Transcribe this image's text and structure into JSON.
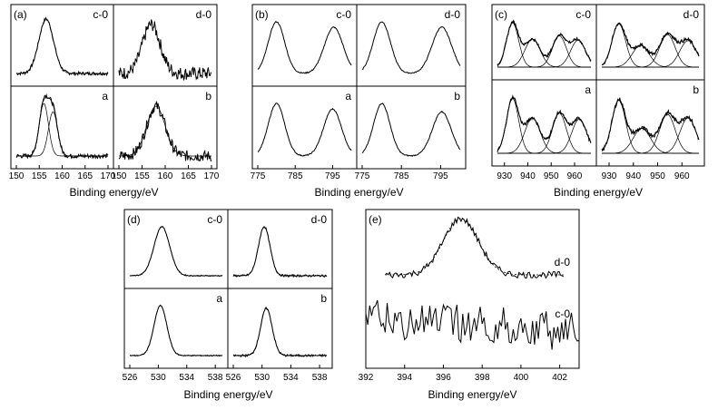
{
  "figure": {
    "description_free": true
  },
  "chart_data": [
    {
      "id": "a",
      "type": "line",
      "panel_label": "(a)",
      "xlabel": "Binding energy/eV",
      "xlim": [
        150,
        170
      ],
      "xticks_left": [
        "150",
        "155",
        "160",
        "165",
        "170"
      ],
      "xticks_right": [
        "150",
        "155",
        "160",
        "165",
        "170"
      ],
      "subpanels": [
        {
          "label": "c-0",
          "peaks": [
            {
              "center": 156.5,
              "width": 1.6,
              "height": 1.0
            }
          ],
          "noise": 0.03,
          "fit": true
        },
        {
          "label": "d-0",
          "peaks": [
            {
              "center": 157.0,
              "width": 1.9,
              "height": 0.9
            }
          ],
          "noise": 0.12,
          "fit": false
        },
        {
          "label": "a",
          "peaks": [
            {
              "center": 156.0,
              "width": 1.0,
              "height": 0.95
            },
            {
              "center": 158.0,
              "width": 1.0,
              "height": 0.8
            }
          ],
          "noise": 0.04,
          "fit": true
        },
        {
          "label": "b",
          "peaks": [
            {
              "center": 158.0,
              "width": 2.0,
              "height": 0.9
            }
          ],
          "noise": 0.1,
          "fit": true
        }
      ]
    },
    {
      "id": "b",
      "type": "line",
      "panel_label": "(b)",
      "xlabel": "Binding energy/eV",
      "xlim": [
        775,
        800
      ],
      "xticks_left": [
        "775",
        "785",
        "795"
      ],
      "xticks_right": [
        "775",
        "785",
        "795"
      ],
      "subpanels": [
        {
          "label": "c-0",
          "peaks": [
            {
              "center": 780.0,
              "width": 2.2,
              "height": 0.95
            },
            {
              "center": 795.3,
              "width": 2.5,
              "height": 0.85
            }
          ],
          "noise": 0.01,
          "fit": false
        },
        {
          "label": "d-0",
          "peaks": [
            {
              "center": 780.0,
              "width": 2.2,
              "height": 0.95
            },
            {
              "center": 795.3,
              "width": 2.5,
              "height": 0.85
            }
          ],
          "noise": 0.01,
          "fit": false
        },
        {
          "label": "a",
          "peaks": [
            {
              "center": 780.0,
              "width": 2.2,
              "height": 0.95
            },
            {
              "center": 795.0,
              "width": 2.4,
              "height": 0.85
            }
          ],
          "noise": 0.01,
          "fit": false
        },
        {
          "label": "b",
          "peaks": [
            {
              "center": 780.0,
              "width": 2.1,
              "height": 0.95
            },
            {
              "center": 795.3,
              "width": 2.4,
              "height": 0.8
            }
          ],
          "noise": 0.01,
          "fit": false
        }
      ]
    },
    {
      "id": "c",
      "type": "line",
      "panel_label": "(c)",
      "xlabel": "Binding energy/eV",
      "xlim": [
        927,
        967
      ],
      "xticks_left": [
        "930",
        "940",
        "950",
        "960"
      ],
      "xticks_right": [
        "930",
        "940",
        "950",
        "960"
      ],
      "subpanels": [
        {
          "label": "c-0",
          "peaks": [
            {
              "center": 933.5,
              "width": 2.6,
              "height": 0.92
            },
            {
              "center": 942.0,
              "width": 3.3,
              "height": 0.58
            },
            {
              "center": 953.5,
              "width": 3.0,
              "height": 0.65
            },
            {
              "center": 961.5,
              "width": 3.2,
              "height": 0.56
            }
          ],
          "noise": 0.03,
          "fit": true
        },
        {
          "label": "d-0",
          "peaks": [
            {
              "center": 934.0,
              "width": 2.8,
              "height": 0.9
            },
            {
              "center": 943.0,
              "width": 3.5,
              "height": 0.45
            },
            {
              "center": 954.0,
              "width": 3.2,
              "height": 0.68
            },
            {
              "center": 962.5,
              "width": 3.4,
              "height": 0.55
            }
          ],
          "noise": 0.04,
          "fit": true
        },
        {
          "label": "a",
          "peaks": [
            {
              "center": 933.5,
              "width": 2.6,
              "height": 0.93
            },
            {
              "center": 942.0,
              "width": 3.3,
              "height": 0.6
            },
            {
              "center": 953.5,
              "width": 3.0,
              "height": 0.68
            },
            {
              "center": 962.0,
              "width": 3.2,
              "height": 0.58
            }
          ],
          "noise": 0.03,
          "fit": true
        },
        {
          "label": "b",
          "peaks": [
            {
              "center": 934.0,
              "width": 2.8,
              "height": 0.9
            },
            {
              "center": 943.5,
              "width": 3.6,
              "height": 0.42
            },
            {
              "center": 954.0,
              "width": 3.2,
              "height": 0.66
            },
            {
              "center": 962.5,
              "width": 3.3,
              "height": 0.6
            }
          ],
          "noise": 0.04,
          "fit": true
        }
      ]
    },
    {
      "id": "d",
      "type": "line",
      "panel_label": "(d)",
      "xlabel": "Binding energy/eV",
      "xlim": [
        526,
        539
      ],
      "xticks_left": [
        "526",
        "530",
        "534",
        "538"
      ],
      "xticks_right": [
        "526",
        "530",
        "534",
        "538"
      ],
      "subpanels": [
        {
          "label": "c-0",
          "peaks": [
            {
              "center": 530.5,
              "width": 1.1,
              "height": 0.95
            }
          ],
          "noise": 0.01,
          "fit": true
        },
        {
          "label": "d-0",
          "peaks": [
            {
              "center": 530.3,
              "width": 0.8,
              "height": 0.95
            }
          ],
          "noise": 0.02,
          "fit": true
        },
        {
          "label": "a",
          "peaks": [
            {
              "center": 530.3,
              "width": 0.9,
              "height": 0.95
            }
          ],
          "noise": 0.01,
          "fit": true
        },
        {
          "label": "b",
          "peaks": [
            {
              "center": 530.6,
              "width": 0.8,
              "height": 0.9
            }
          ],
          "noise": 0.02,
          "fit": true
        }
      ]
    },
    {
      "id": "e",
      "type": "line",
      "panel_label": "(e)",
      "xlabel": "Binding energy/eV",
      "xlim": [
        392,
        403
      ],
      "xticks": [
        "392",
        "394",
        "396",
        "398",
        "400",
        "402"
      ],
      "series": [
        {
          "label": "d-0",
          "peak_center": 396.9,
          "peak_width": 0.9,
          "x_start": 393.0,
          "x_end": 402.2,
          "fit": true
        },
        {
          "label": "c-0",
          "noise_only": true,
          "x_start": 392.0,
          "x_end": 403.0
        }
      ]
    }
  ]
}
